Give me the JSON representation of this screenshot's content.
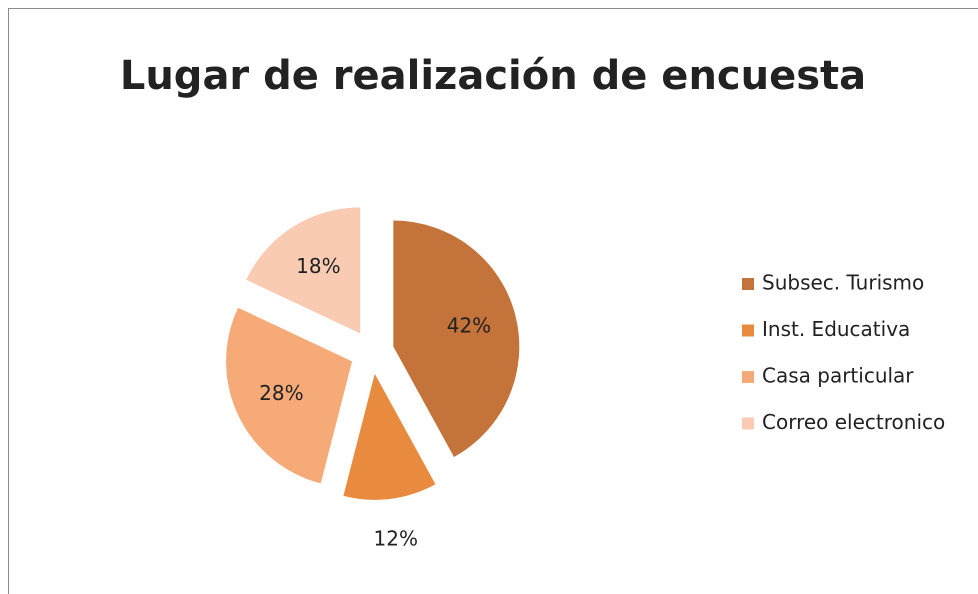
{
  "chart_data": {
    "type": "pie",
    "title": "Lugar de realización de encuesta",
    "categories": [
      "Subsec. Turismo",
      "Inst. Educativa",
      "Casa particular",
      "Correo electronico"
    ],
    "values": [
      42,
      12,
      28,
      18
    ],
    "value_labels": [
      "42%",
      "12%",
      "28%",
      "18%"
    ],
    "colors": [
      "#c4733a",
      "#e98b3f",
      "#f5aa78",
      "#f8cbb2"
    ],
    "legend": "right"
  }
}
